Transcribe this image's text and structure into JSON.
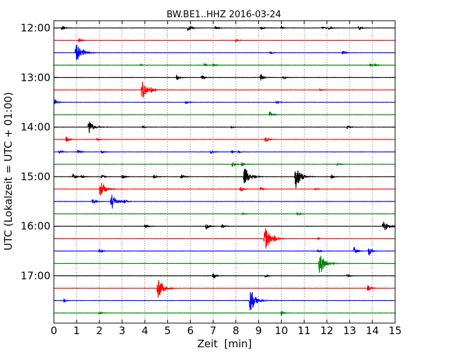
{
  "chart_data": {
    "type": "line",
    "title": "BW.BE1..HHZ 2016-03-24",
    "xlabel": "Zeit  [min]",
    "ylabel": "UTC (Lokalzeit = UTC + 01:00)",
    "xlim": [
      0,
      15
    ],
    "x_ticks": [
      0,
      1,
      2,
      3,
      4,
      5,
      6,
      7,
      8,
      9,
      10,
      11,
      12,
      13,
      14,
      15
    ],
    "x_tick_labels": [
      "0",
      "1",
      "2",
      "3",
      "4",
      "5",
      "6",
      "7",
      "8",
      "9",
      "10",
      "11",
      "12",
      "13",
      "14",
      "15"
    ],
    "y_tick_labels": [
      "12:00",
      "13:00",
      "14:00",
      "15:00",
      "16:00",
      "17:00"
    ],
    "grid": true,
    "trace_colors": [
      "#000000",
      "#ff0000",
      "#0000ff",
      "#008000"
    ],
    "traces": [
      {
        "start": "12:00",
        "events": [
          [
            0.35,
            0.5
          ],
          [
            5.9,
            0.8
          ],
          [
            7.1,
            0.3
          ],
          [
            9.1,
            0.3
          ],
          [
            10.0,
            0.25
          ],
          [
            11.8,
            0.3
          ],
          [
            12.1,
            0.35
          ],
          [
            13.4,
            0.45
          ]
        ]
      },
      {
        "start": "12:15",
        "events": [
          [
            1.1,
            0.4
          ],
          [
            8.0,
            0.2
          ]
        ]
      },
      {
        "start": "12:30",
        "events": [
          [
            1.0,
            1.9
          ],
          [
            1.3,
            0.4
          ],
          [
            9.5,
            0.25
          ],
          [
            12.7,
            0.35
          ]
        ]
      },
      {
        "start": "12:45",
        "events": [
          [
            3.8,
            0.2
          ],
          [
            6.6,
            0.35
          ],
          [
            7.0,
            0.3
          ],
          [
            13.9,
            0.35
          ],
          [
            14.1,
            0.3
          ]
        ]
      },
      {
        "start": "13:00",
        "events": [
          [
            5.4,
            0.6
          ],
          [
            6.5,
            0.4
          ],
          [
            9.1,
            0.9
          ],
          [
            10.1,
            0.35
          ]
        ]
      },
      {
        "start": "13:15",
        "events": [
          [
            3.9,
            1.9
          ],
          [
            4.3,
            0.3
          ],
          [
            11.7,
            0.2
          ]
        ]
      },
      {
        "start": "13:30",
        "events": [
          [
            0.05,
            0.6
          ],
          [
            5.8,
            0.25
          ],
          [
            9.8,
            0.25
          ]
        ]
      },
      {
        "start": "13:45",
        "events": [
          [
            9.5,
            0.7
          ]
        ]
      },
      {
        "start": "14:00",
        "events": [
          [
            1.55,
            1.2
          ],
          [
            3.9,
            0.3
          ],
          [
            7.8,
            0.2
          ],
          [
            12.9,
            0.35
          ]
        ]
      },
      {
        "start": "14:15",
        "events": [
          [
            0.55,
            0.8
          ],
          [
            1.9,
            0.25
          ],
          [
            9.3,
            0.7
          ]
        ]
      },
      {
        "start": "14:30",
        "events": [
          [
            0.25,
            0.4
          ],
          [
            1.05,
            0.6
          ],
          [
            2.1,
            0.25
          ],
          [
            6.9,
            0.4
          ],
          [
            7.8,
            0.3
          ],
          [
            8.1,
            0.25
          ]
        ]
      },
      {
        "start": "14:45",
        "events": [
          [
            7.85,
            0.5
          ],
          [
            8.25,
            0.4
          ],
          [
            12.45,
            0.25
          ]
        ]
      },
      {
        "start": "15:00",
        "events": [
          [
            0.85,
            0.6
          ],
          [
            1.2,
            0.3
          ],
          [
            2.1,
            0.45
          ],
          [
            3.0,
            0.5
          ],
          [
            4.4,
            0.4
          ],
          [
            5.6,
            0.45
          ],
          [
            8.4,
            2.2
          ],
          [
            10.65,
            2.5
          ],
          [
            12.2,
            0.35
          ]
        ]
      },
      {
        "start": "15:15",
        "events": [
          [
            2.05,
            1.7
          ],
          [
            8.2,
            0.6
          ],
          [
            9.1,
            0.3
          ],
          [
            11.5,
            0.2
          ]
        ]
      },
      {
        "start": "15:30",
        "events": [
          [
            1.7,
            0.6
          ],
          [
            2.55,
            1.5
          ],
          [
            3.1,
            0.4
          ]
        ]
      },
      {
        "start": "15:45",
        "events": [
          [
            8.3,
            0.2
          ],
          [
            10.7,
            0.3
          ]
        ]
      },
      {
        "start": "16:00",
        "events": [
          [
            4.0,
            0.5
          ],
          [
            6.7,
            0.9
          ],
          [
            7.4,
            0.4
          ],
          [
            14.5,
            1.1
          ]
        ]
      },
      {
        "start": "16:15",
        "events": [
          [
            9.3,
            2.5
          ],
          [
            9.7,
            0.4
          ],
          [
            11.6,
            0.2
          ]
        ]
      },
      {
        "start": "16:30",
        "events": [
          [
            2.0,
            0.3
          ],
          [
            11.6,
            0.25
          ],
          [
            13.2,
            1.0
          ],
          [
            13.85,
            1.0
          ]
        ]
      },
      {
        "start": "16:45",
        "events": [
          [
            11.7,
            2.2
          ]
        ]
      },
      {
        "start": "17:00",
        "events": [
          [
            7.0,
            0.6
          ],
          [
            9.3,
            0.25
          ],
          [
            12.9,
            0.3
          ]
        ]
      },
      {
        "start": "17:15",
        "events": [
          [
            4.6,
            2.5
          ],
          [
            13.8,
            0.8
          ]
        ]
      },
      {
        "start": "17:30",
        "events": [
          [
            0.45,
            0.35
          ],
          [
            8.65,
            2.6
          ]
        ]
      },
      {
        "start": "17:45",
        "events": [
          [
            2.0,
            0.25
          ],
          [
            10.0,
            0.5
          ]
        ]
      }
    ]
  }
}
